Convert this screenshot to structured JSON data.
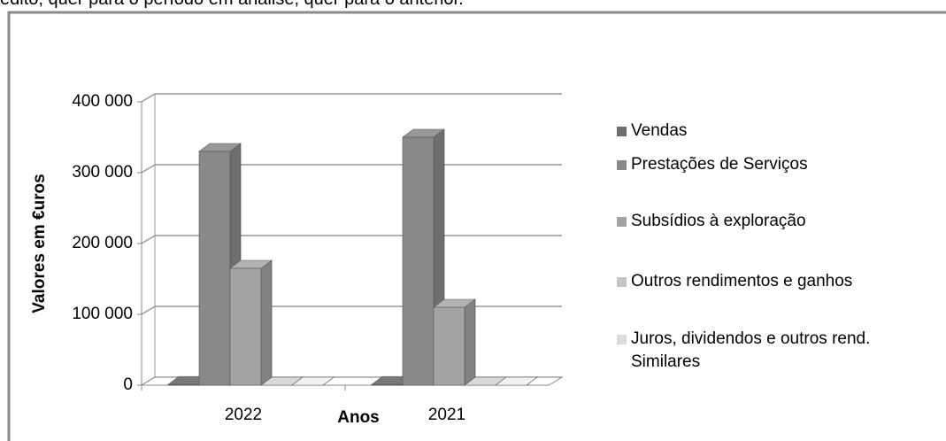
{
  "header_text": "édito, quer para o período em análise, quer para o anterior.",
  "chart_data": {
    "type": "bar3d",
    "y_label": "Valores em €uros",
    "x_label": "Anos",
    "categories": [
      "2022",
      "2021"
    ],
    "series": [
      {
        "name": "Vendas",
        "color": "#6e6e6e",
        "values": [
          1000,
          1000
        ]
      },
      {
        "name": "Prestações de Serviços",
        "color": "#898989",
        "values": [
          330000,
          350000
        ]
      },
      {
        "name": "Subsídios à exploração",
        "color": "#a3a3a3",
        "values": [
          165000,
          110000
        ]
      },
      {
        "name": "Outros rendimentos e ganhos",
        "color": "#c4c4c4",
        "values": [
          0,
          0
        ]
      },
      {
        "name": "Juros, dividendos e outros rend. Similares",
        "color": "#dcdcdc",
        "values": [
          0,
          0
        ]
      }
    ],
    "ylim": [
      0,
      400000
    ],
    "yticks": [
      0,
      {
        "value": 100000,
        "label": "100 000"
      },
      {
        "value": 200000,
        "label": "200 000"
      },
      {
        "value": 300000,
        "label": "300 000"
      },
      {
        "value": 400000,
        "label": "400 000"
      }
    ],
    "grid": true
  }
}
